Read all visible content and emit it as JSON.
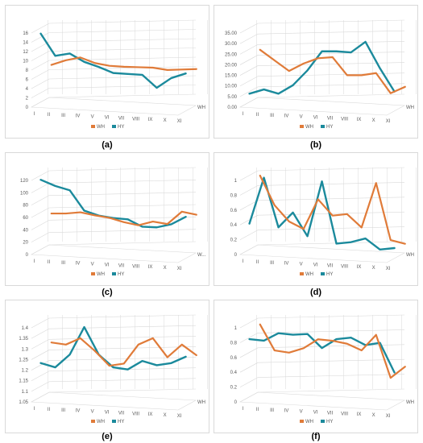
{
  "colors": {
    "WH": "#e07b39",
    "HY": "#1b8a9c",
    "grid": "#d9d9d9"
  },
  "chart_data": [
    {
      "id": "a",
      "label": "(a)",
      "type": "line",
      "categories": [
        "I",
        "II",
        "III",
        "IV",
        "V",
        "VI",
        "VII",
        "VIII",
        "IX",
        "X",
        "XI"
      ],
      "depth_label": "WH",
      "ylim": [
        0,
        16
      ],
      "yticks": [
        "0",
        "2",
        "4",
        "6",
        "8",
        "10",
        "12",
        "14",
        "16"
      ],
      "series": [
        {
          "name": "WH",
          "values": [
            6.8,
            7.8,
            8.4,
            7.2,
            6.6,
            6.4,
            6.3,
            6.2,
            5.7,
            5.8,
            5.9
          ]
        },
        {
          "name": "HY",
          "values": [
            14.8,
            10.0,
            10.5,
            8.7,
            7.6,
            6.3,
            6.1,
            5.9,
            3.1,
            5.2,
            6.2
          ]
        }
      ]
    },
    {
      "id": "b",
      "label": "(b)",
      "type": "line",
      "categories": [
        "I",
        "II",
        "III",
        "IV",
        "V",
        "VI",
        "VII",
        "VIII",
        "IX",
        "X",
        "XI"
      ],
      "depth_label": "WH",
      "ylim": [
        0,
        35
      ],
      "yticks": [
        "0.00",
        "5.00",
        "10.00",
        "15.00",
        "20.00",
        "25.00",
        "30.00",
        "35.00"
      ],
      "series": [
        {
          "name": "WH",
          "values": [
            22.0,
            17.0,
            12.0,
            15.5,
            18.0,
            18.5,
            10.0,
            10.0,
            11.0,
            1.5,
            4.5
          ]
        },
        {
          "name": "HY",
          "values": [
            4.0,
            6.0,
            4.0,
            8.0,
            15.0,
            24.0,
            24.0,
            23.5,
            28.5,
            16.0,
            5.0
          ]
        }
      ]
    },
    {
      "id": "c",
      "label": "(c)",
      "type": "line",
      "categories": [
        "I",
        "II",
        "III",
        "IV",
        "V",
        "VI",
        "VII",
        "VIII",
        "IX",
        "X",
        "XI"
      ],
      "depth_label": "W...",
      "ylim": [
        0,
        120
      ],
      "yticks": [
        "0",
        "20",
        "40",
        "60",
        "80",
        "100",
        "120"
      ],
      "series": [
        {
          "name": "WH",
          "values": [
            49,
            49,
            51,
            46,
            42,
            35,
            30,
            36,
            32,
            52,
            47
          ]
        },
        {
          "name": "HY",
          "values": [
            113,
            103,
            96,
            63,
            55,
            51,
            49,
            37,
            36,
            41,
            53
          ]
        }
      ]
    },
    {
      "id": "d",
      "label": "(d)",
      "type": "line",
      "categories": [
        "I",
        "II",
        "III",
        "IV",
        "V",
        "VI",
        "VII",
        "VIII",
        "IX",
        "X",
        "XI"
      ],
      "depth_label": "WH",
      "ylim": [
        0,
        1
      ],
      "yticks": [
        "0",
        "0.2",
        "0.4",
        "0.6",
        "0.8",
        "1"
      ],
      "series": [
        {
          "name": "WH",
          "values": [
            0.92,
            0.52,
            0.3,
            0.2,
            0.6,
            0.38,
            0.4,
            0.22,
            0.82,
            0.05,
            0.0
          ]
        },
        {
          "name": "HY",
          "values": [
            0.35,
            0.97,
            0.3,
            0.5,
            0.18,
            0.92,
            0.08,
            0.1,
            0.15,
            0.0,
            0.02
          ]
        }
      ]
    },
    {
      "id": "e",
      "label": "(e)",
      "type": "line",
      "categories": [
        "I",
        "II",
        "III",
        "IV",
        "V",
        "VI",
        "VII",
        "VIII",
        "IX",
        "X",
        "XI"
      ],
      "depth_label": "WH",
      "ylim": [
        1.05,
        1.4
      ],
      "yticks": [
        "1.05",
        "1.1",
        "1.15",
        "1.2",
        "1.25",
        "1.3",
        "1.35",
        "1.4"
      ],
      "series": [
        {
          "name": "WH",
          "values": [
            1.28,
            1.27,
            1.3,
            1.24,
            1.17,
            1.18,
            1.27,
            1.3,
            1.21,
            1.27,
            1.22
          ]
        },
        {
          "name": "HY",
          "values": [
            1.21,
            1.19,
            1.25,
            1.38,
            1.25,
            1.19,
            1.18,
            1.22,
            1.2,
            1.21,
            1.24
          ]
        }
      ]
    },
    {
      "id": "f",
      "label": "(f)",
      "type": "line",
      "categories": [
        "I",
        "II",
        "III",
        "IV",
        "V",
        "VI",
        "VII",
        "VIII",
        "IX",
        "X",
        "XI"
      ],
      "depth_label": "WH",
      "ylim": [
        0,
        1
      ],
      "yticks": [
        "0",
        "0.2",
        "0.4",
        "0.6",
        "0.8",
        "1"
      ],
      "series": [
        {
          "name": "WH",
          "values": [
            0.9,
            0.55,
            0.52,
            0.58,
            0.7,
            0.68,
            0.64,
            0.55,
            0.76,
            0.18,
            0.33
          ]
        },
        {
          "name": "HY",
          "values": [
            0.78,
            0.76,
            0.86,
            0.84,
            0.85,
            0.66,
            0.78,
            0.8,
            0.7,
            0.73,
            0.33
          ]
        }
      ]
    }
  ]
}
